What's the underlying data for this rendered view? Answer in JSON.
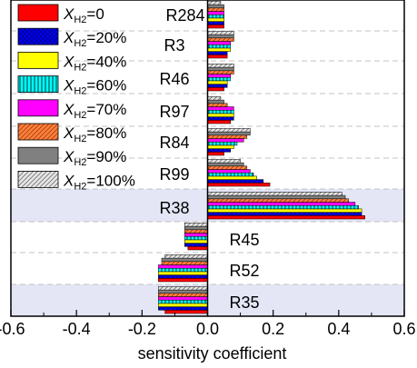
{
  "chart_data": {
    "type": "bar",
    "orientation": "horizontal",
    "title": "",
    "xlabel": "sensitivity coefficient",
    "ylabel": "",
    "xlim": [
      -0.6,
      0.6
    ],
    "xticks": [
      "-0.6",
      "-0.4",
      "-0.2",
      "0.0",
      "0.2",
      "0.4",
      "0.6"
    ],
    "grid": false,
    "legend_position": "top-left",
    "categories": [
      "R284",
      "R3",
      "R46",
      "R97",
      "R84",
      "R99",
      "R38",
      "R45",
      "R52",
      "R35"
    ],
    "highlighted_categories": [
      "R38",
      "R35"
    ],
    "series": [
      {
        "legend_prefix": "X",
        "legend_subscript": "H2",
        "legend_value": "=0",
        "fill": "#ff0000",
        "pattern": "solid",
        "values": [
          0.05,
          0.06,
          0.05,
          0.07,
          0.05,
          0.19,
          0.48,
          -0.06,
          -0.15,
          -0.13
        ]
      },
      {
        "legend_prefix": "X",
        "legend_subscript": "H2",
        "legend_value": "=20%",
        "fill": "#0000ff",
        "pattern": "crosshatch",
        "values": [
          0.05,
          0.06,
          0.06,
          0.08,
          0.07,
          0.17,
          0.47,
          -0.07,
          -0.15,
          -0.15
        ]
      },
      {
        "legend_prefix": "X",
        "legend_subscript": "H2",
        "legend_value": "=40%",
        "fill": "#ffff00",
        "pattern": "solid",
        "values": [
          0.05,
          0.07,
          0.06,
          0.08,
          0.08,
          0.15,
          0.47,
          -0.07,
          -0.15,
          -0.15
        ]
      },
      {
        "legend_prefix": "X",
        "legend_subscript": "H2",
        "legend_value": "=60%",
        "fill": "#00ffff",
        "pattern": "vertical",
        "values": [
          0.05,
          0.07,
          0.07,
          0.08,
          0.09,
          0.14,
          0.46,
          -0.07,
          -0.15,
          -0.15
        ]
      },
      {
        "legend_prefix": "X",
        "legend_subscript": "H2",
        "legend_value": "=70%",
        "fill": "#ff00ff",
        "pattern": "solid",
        "values": [
          0.05,
          0.07,
          0.07,
          0.08,
          0.11,
          0.13,
          0.45,
          -0.07,
          -0.15,
          -0.15
        ]
      },
      {
        "legend_prefix": "X",
        "legend_subscript": "H2",
        "legend_value": "=80%",
        "fill": "#ff8040",
        "pattern": "diagonal",
        "values": [
          0.05,
          0.08,
          0.08,
          0.06,
          0.12,
          0.12,
          0.43,
          -0.07,
          -0.14,
          -0.15
        ]
      },
      {
        "legend_prefix": "X",
        "legend_subscript": "H2",
        "legend_value": "=90%",
        "fill": "#808080",
        "pattern": "solid",
        "values": [
          0.05,
          0.08,
          0.08,
          0.05,
          0.13,
          0.11,
          0.42,
          -0.07,
          -0.14,
          -0.15
        ]
      },
      {
        "legend_prefix": "X",
        "legend_subscript": "H2",
        "legend_value": "=100%",
        "fill": "#d8d8d8",
        "pattern": "diagonal",
        "values": [
          0.04,
          0.08,
          0.08,
          0.04,
          0.13,
          0.1,
          0.41,
          -0.07,
          -0.13,
          -0.15
        ]
      }
    ]
  }
}
